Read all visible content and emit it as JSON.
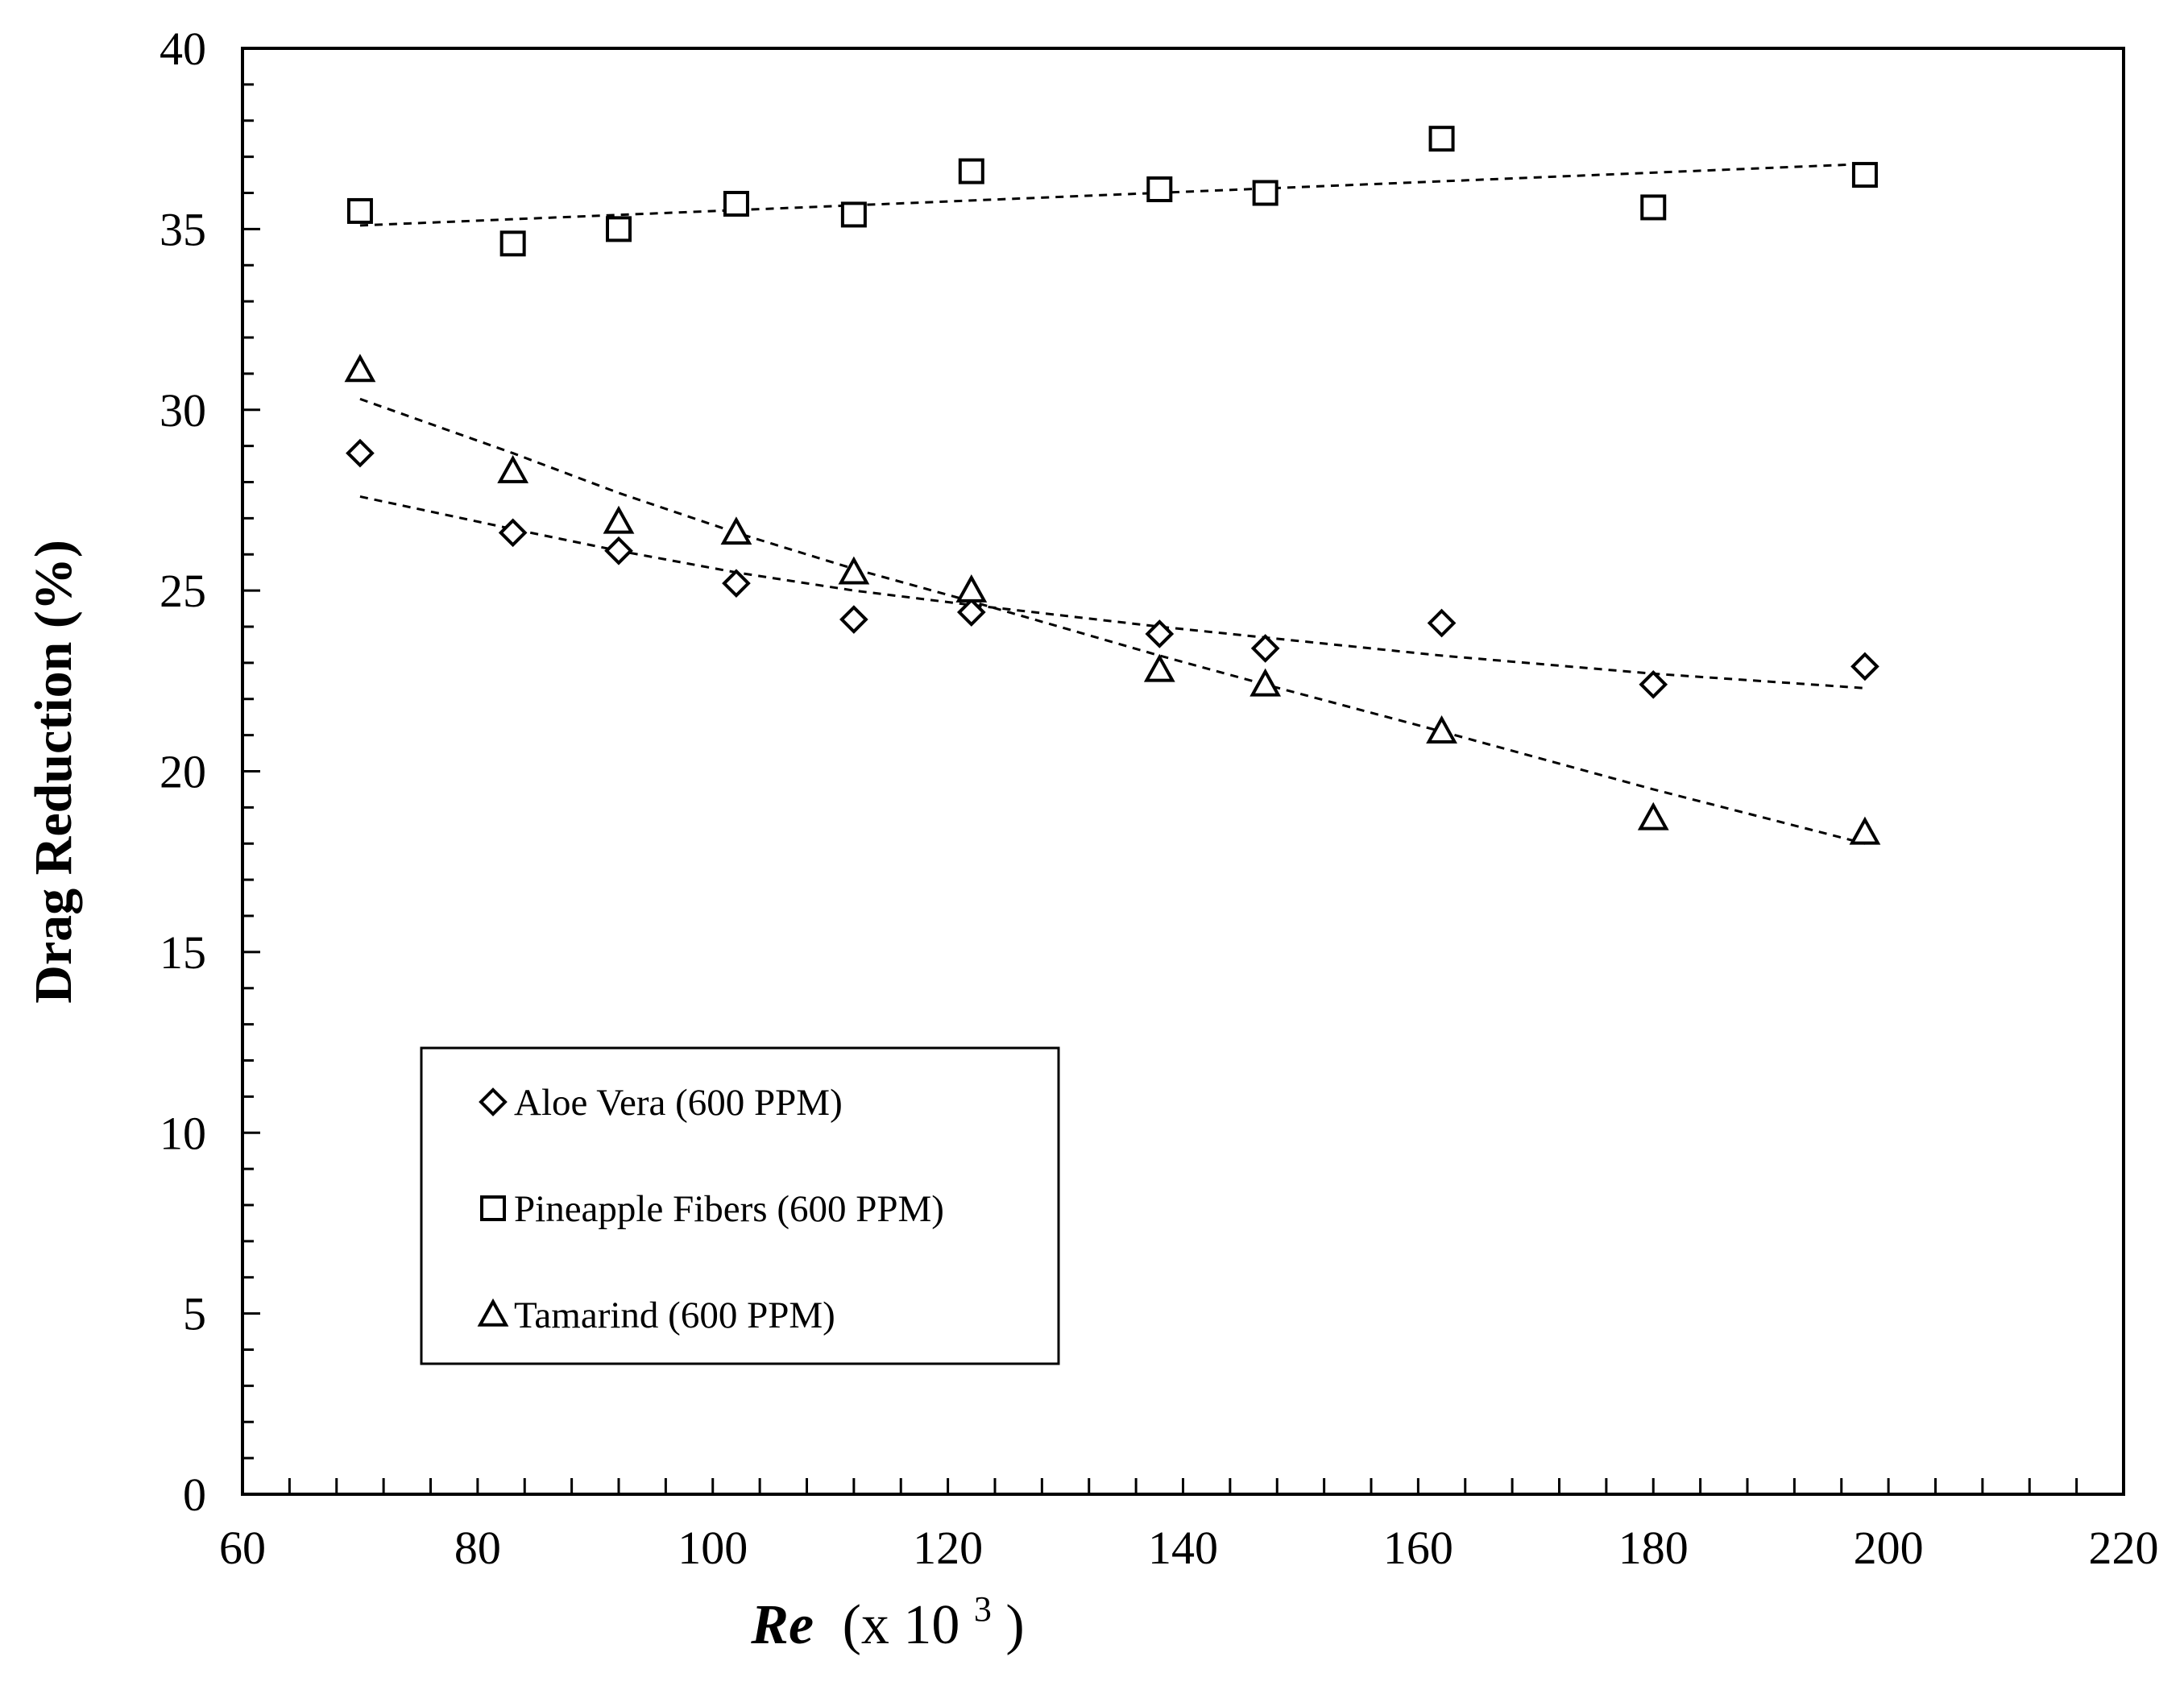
{
  "chart_data": {
    "type": "scatter",
    "title": "",
    "xlabel": {
      "main": "Re",
      "suffix_prefix": "(x 10",
      "exponent": "3",
      "suffix_close": ")"
    },
    "ylabel": "Drag Reduction (%)",
    "xlim": [
      60,
      220
    ],
    "ylim": [
      0,
      40
    ],
    "x_ticks": [
      60,
      80,
      100,
      120,
      140,
      160,
      180,
      200,
      220
    ],
    "y_ticks": [
      0,
      5,
      10,
      15,
      20,
      25,
      30,
      35,
      40
    ],
    "x_minor_step": 4,
    "y_minor_step": 1,
    "grid": false,
    "legend_position": "lower-left",
    "series": [
      {
        "name": "Aloe Vera (600 PPM)",
        "marker": "diamond",
        "x": [
          70,
          83,
          92,
          102,
          112,
          122,
          138,
          147,
          162,
          180,
          198
        ],
        "y": [
          28.8,
          26.6,
          26.1,
          25.2,
          24.2,
          24.4,
          23.8,
          23.4,
          24.1,
          22.4,
          22.9
        ],
        "trend": {
          "x": [
            70,
            83,
            92,
            102,
            112,
            122,
            138,
            147,
            162,
            180,
            198
          ],
          "y": [
            27.6,
            26.7,
            26.1,
            25.5,
            25.0,
            24.6,
            24.0,
            23.7,
            23.2,
            22.7,
            22.3
          ]
        }
      },
      {
        "name": "Pineapple Fibers (600 PPM)",
        "marker": "square",
        "x": [
          70,
          83,
          92,
          102,
          112,
          122,
          138,
          147,
          162,
          180,
          198
        ],
        "y": [
          35.5,
          34.6,
          35.0,
          35.7,
          35.4,
          36.6,
          36.1,
          36.0,
          37.5,
          35.6,
          36.5
        ],
        "trend": {
          "x": [
            70,
            198
          ],
          "y": [
            35.1,
            36.8
          ]
        }
      },
      {
        "name": "Tamarind (600 PPM)",
        "marker": "triangle",
        "x": [
          70,
          83,
          92,
          102,
          112,
          122,
          138,
          147,
          162,
          180,
          198
        ],
        "y": [
          31.1,
          28.3,
          26.9,
          26.6,
          25.5,
          25.0,
          22.8,
          22.4,
          21.1,
          18.7,
          18.3
        ],
        "trend": {
          "x": [
            70,
            83,
            92,
            102,
            112,
            122,
            138,
            147,
            162,
            180,
            198
          ],
          "y": [
            30.3,
            28.8,
            27.7,
            26.6,
            25.6,
            24.7,
            23.2,
            22.4,
            21.1,
            19.5,
            18.0
          ]
        }
      }
    ]
  }
}
